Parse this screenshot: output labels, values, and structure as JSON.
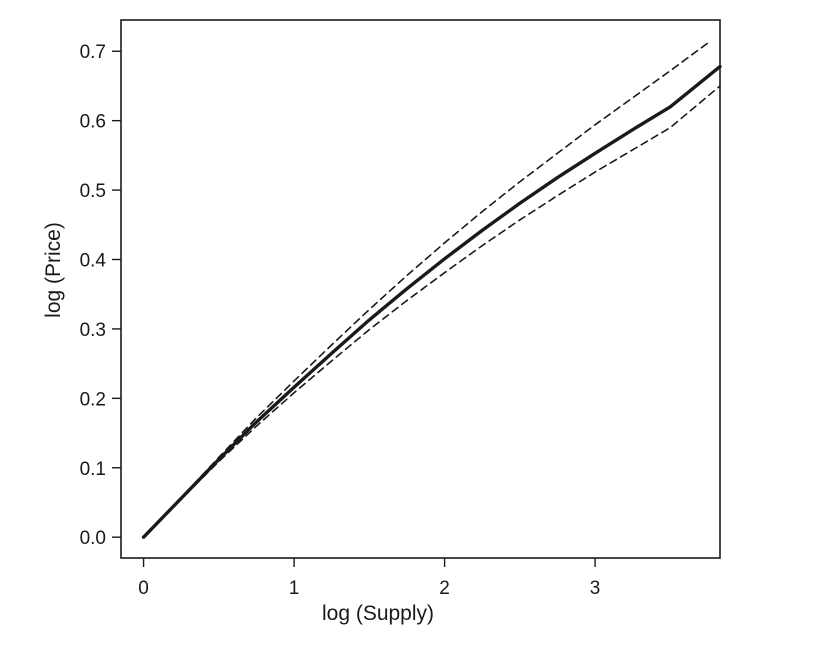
{
  "chart_data": {
    "type": "line",
    "title": "",
    "xlabel": "log (Supply)",
    "ylabel": "log (Price)",
    "xlim": [
      -0.15,
      3.83
    ],
    "ylim": [
      -0.03,
      0.745
    ],
    "x_ticks": [
      0,
      1,
      2,
      3
    ],
    "x_tick_labels": [
      "0",
      "1",
      "2",
      "3"
    ],
    "y_ticks": [
      0.0,
      0.1,
      0.2,
      0.3,
      0.4,
      0.5,
      0.6,
      0.7
    ],
    "y_tick_labels": [
      "0.0",
      "0.1",
      "0.2",
      "0.3",
      "0.4",
      "0.5",
      "0.6",
      "0.7"
    ],
    "grid": false,
    "legend": "none",
    "series": [
      {
        "style": "solid",
        "color": "#1a1a1a",
        "x": [
          0,
          0.25,
          0.5,
          0.75,
          1.0,
          1.25,
          1.5,
          1.75,
          2.0,
          2.25,
          2.5,
          2.75,
          3.0,
          3.25,
          3.5,
          3.83
        ],
        "y": [
          0.0,
          0.056,
          0.112,
          0.166,
          0.216,
          0.265,
          0.313,
          0.358,
          0.401,
          0.442,
          0.481,
          0.518,
          0.553,
          0.587,
          0.62,
          0.678
        ]
      },
      {
        "style": "dashed",
        "color": "#1a1a1a",
        "x": [
          0,
          0.25,
          0.5,
          0.75,
          1.0,
          1.25,
          1.5,
          1.75,
          2.0,
          2.25,
          2.5,
          2.75,
          3.0,
          3.25,
          3.5,
          3.75
        ],
        "y": [
          0.0,
          0.057,
          0.115,
          0.172,
          0.225,
          0.277,
          0.328,
          0.377,
          0.424,
          0.469,
          0.512,
          0.553,
          0.594,
          0.633,
          0.672,
          0.712
        ]
      },
      {
        "style": "dashed",
        "color": "#1a1a1a",
        "x": [
          0,
          0.25,
          0.5,
          0.75,
          1.0,
          1.25,
          1.5,
          1.75,
          2.0,
          2.25,
          2.5,
          2.75,
          3.0,
          3.25,
          3.5,
          3.83
        ],
        "y": [
          0.0,
          0.055,
          0.109,
          0.16,
          0.208,
          0.254,
          0.299,
          0.341,
          0.381,
          0.42,
          0.457,
          0.492,
          0.526,
          0.558,
          0.59,
          0.65
        ]
      }
    ]
  }
}
